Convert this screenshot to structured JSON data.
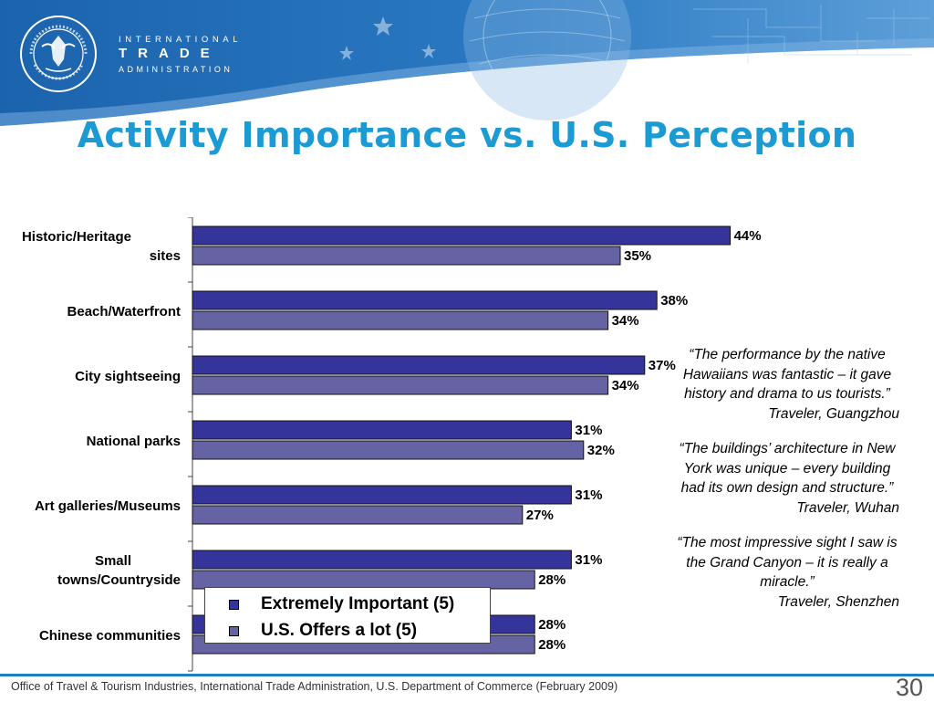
{
  "header": {
    "seal_icon": "department-of-commerce-seal",
    "seal_text": "DEPARTMENT OF COMMERCE · UNITED STATES OF AMERICA",
    "org_line1": "INTERNATIONAL",
    "org_line2": "TRADE",
    "org_line3": "ADMINISTRATION"
  },
  "slide": {
    "title": "Activity Importance vs. U.S. Perception"
  },
  "colors": {
    "header_blue": "#1f6fb8",
    "title_blue": "#1b9ad4",
    "rule_green": "#c4c72a",
    "series1": "#35349a",
    "series2": "#6563a4"
  },
  "chart_data": {
    "type": "bar",
    "orientation": "horizontal",
    "categories": [
      "Historic/Heritage sites",
      "Beach/Waterfront",
      "City sightseeing",
      "National parks",
      "Art galleries/Museums",
      "Small towns/Countryside",
      "Chinese communities"
    ],
    "series": [
      {
        "name": "Extremely Important (5)",
        "values": [
          44,
          38,
          37,
          31,
          31,
          31,
          28
        ],
        "labels": [
          "44%",
          "38%",
          "37%",
          "31%",
          "31%",
          "31%",
          "28%"
        ],
        "color": "#35349a"
      },
      {
        "name": "U.S. Offers a lot (5)",
        "values": [
          35,
          34,
          34,
          32,
          27,
          28,
          28
        ],
        "labels": [
          "35%",
          "34%",
          "34%",
          "32%",
          "27%",
          "28%",
          "28%"
        ],
        "color": "#6563a4"
      }
    ],
    "value_unit": "%",
    "xlim": [
      0,
      60
    ],
    "grid": false,
    "legend_position": "bottom-center"
  },
  "quotes": [
    {
      "text": "“The performance by the native Hawaiians was fantastic – it gave history and drama to us tourists.”",
      "attribution": "Traveler, Guangzhou"
    },
    {
      "text": "“The buildings’ architecture in New York was unique – every building had its own design and structure.”",
      "attribution": "Traveler, Wuhan"
    },
    {
      "text": "“The most impressive sight I saw is the Grand Canyon – it is really a miracle.”",
      "attribution": "Traveler, Shenzhen"
    }
  ],
  "footer": {
    "source": "Office of Travel & Tourism Industries, International Trade Administration, U.S. Department of Commerce (February 2009)",
    "page_number": "30"
  }
}
